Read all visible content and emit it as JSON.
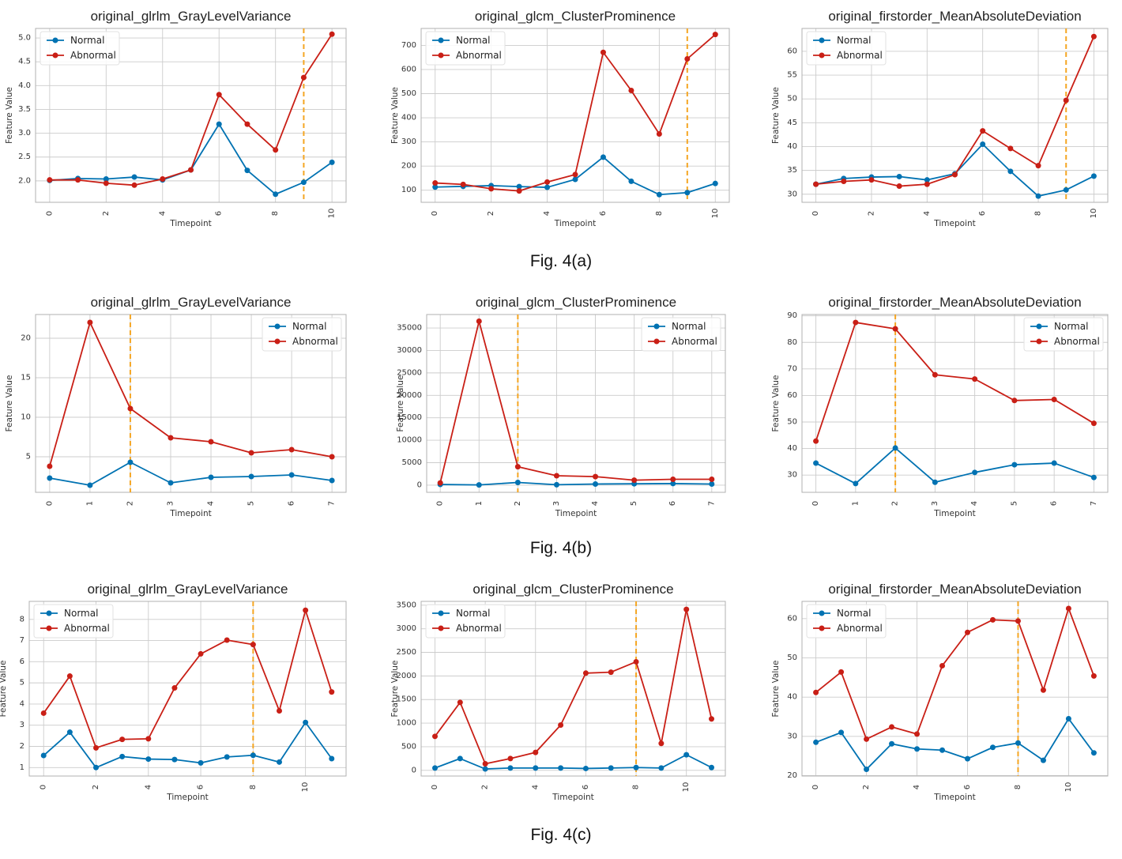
{
  "figures": [
    {
      "caption": "Fig. 4(a)"
    },
    {
      "caption": "Fig. 4(b)"
    },
    {
      "caption": "Fig. 4(c)"
    }
  ],
  "colors": {
    "normal": "#0072b2",
    "abnormal": "#c91f16",
    "threshold": "#f5a623",
    "grid": "#cccccc",
    "frame": "#b0b0b0"
  },
  "chart_data": [
    {
      "type": "line",
      "figure": "Fig. 4(a)",
      "title": "original_glrlm_GrayLevelVariance",
      "xlabel": "Timepoint",
      "ylabel": "Feature Value",
      "xlim": [
        -0.5,
        10.5
      ],
      "ylim": [
        1.55,
        5.2
      ],
      "xticks": [
        0,
        2,
        4,
        6,
        8,
        10
      ],
      "yticks": [
        2.0,
        2.5,
        3.0,
        3.5,
        4.0,
        4.5,
        5.0
      ],
      "ytick_labels": [
        "2.0",
        "2.5",
        "3.0",
        "3.5",
        "4.0",
        "4.5",
        "5.0"
      ],
      "threshold_x": 9,
      "legend": "top-left",
      "x": [
        0,
        1,
        2,
        3,
        4,
        5,
        6,
        7,
        8,
        9,
        10
      ],
      "series": [
        {
          "name": "Normal",
          "values": [
            2.01,
            2.05,
            2.04,
            2.08,
            2.02,
            2.23,
            3.19,
            2.22,
            1.72,
            1.97,
            2.39
          ]
        },
        {
          "name": "Abnormal",
          "values": [
            2.02,
            2.02,
            1.95,
            1.91,
            2.04,
            2.23,
            3.81,
            3.19,
            2.65,
            4.17,
            5.08
          ]
        }
      ]
    },
    {
      "type": "line",
      "figure": "Fig. 4(a)",
      "title": "original_glcm_ClusterProminence",
      "xlabel": "Timepoint",
      "ylabel": "Feature Value",
      "xlim": [
        -0.5,
        10.5
      ],
      "ylim": [
        50,
        770
      ],
      "xticks": [
        0,
        2,
        4,
        6,
        8,
        10
      ],
      "yticks": [
        100,
        200,
        300,
        400,
        500,
        600,
        700
      ],
      "ytick_labels": [
        "100",
        "200",
        "300",
        "400",
        "500",
        "600",
        "700"
      ],
      "threshold_x": 9,
      "legend": "top-left",
      "x": [
        0,
        1,
        2,
        3,
        4,
        5,
        6,
        7,
        8,
        9,
        10
      ],
      "series": [
        {
          "name": "Normal",
          "values": [
            113,
            116,
            119,
            115,
            112,
            145,
            237,
            137,
            82,
            90,
            128
          ]
        },
        {
          "name": "Abnormal",
          "values": [
            130,
            124,
            106,
            97,
            134,
            165,
            671,
            513,
            333,
            644,
            745
          ]
        }
      ]
    },
    {
      "type": "line",
      "figure": "Fig. 4(a)",
      "title": "original_firstorder_MeanAbsoluteDeviation",
      "xlabel": "Timepoint",
      "ylabel": "Feature Value",
      "xlim": [
        -0.5,
        10.5
      ],
      "ylim": [
        28.3,
        64.8
      ],
      "xticks": [
        0,
        2,
        4,
        6,
        8,
        10
      ],
      "yticks": [
        30,
        35,
        40,
        45,
        50,
        55,
        60
      ],
      "ytick_labels": [
        "30",
        "35",
        "40",
        "45",
        "50",
        "55",
        "60"
      ],
      "threshold_x": 9,
      "legend": "top-left",
      "x": [
        0,
        1,
        2,
        3,
        4,
        5,
        6,
        7,
        8,
        9,
        10
      ],
      "series": [
        {
          "name": "Normal",
          "values": [
            32.1,
            33.3,
            33.6,
            33.7,
            33.0,
            34.3,
            40.5,
            34.8,
            29.6,
            30.9,
            33.8
          ]
        },
        {
          "name": "Abnormal",
          "values": [
            32.1,
            32.7,
            33.0,
            31.7,
            32.1,
            34.1,
            43.3,
            39.6,
            36.0,
            49.7,
            63.1
          ]
        }
      ]
    },
    {
      "type": "line",
      "figure": "Fig. 4(b)",
      "title": "original_glrlm_GrayLevelVariance",
      "xlabel": "Timepoint",
      "ylabel": "Feature Value",
      "xlim": [
        -0.35,
        7.35
      ],
      "ylim": [
        0.5,
        23.0
      ],
      "xticks": [
        0,
        1,
        2,
        3,
        4,
        5,
        6,
        7
      ],
      "yticks": [
        5,
        10,
        15,
        20
      ],
      "ytick_labels": [
        "5",
        "10",
        "15",
        "20"
      ],
      "threshold_x": 2,
      "legend": "top-right",
      "x": [
        0,
        1,
        2,
        3,
        4,
        5,
        6,
        7
      ],
      "series": [
        {
          "name": "Normal",
          "values": [
            2.3,
            1.4,
            4.3,
            1.7,
            2.4,
            2.5,
            2.7,
            2.0
          ]
        },
        {
          "name": "Abnormal",
          "values": [
            3.8,
            22.0,
            11.1,
            7.4,
            6.9,
            5.5,
            5.9,
            5.0
          ]
        }
      ]
    },
    {
      "type": "line",
      "figure": "Fig. 4(b)",
      "title": "original_glcm_ClusterProminence",
      "xlabel": "Timepoint",
      "ylabel": "Feature Value",
      "xlim": [
        -0.35,
        7.35
      ],
      "ylim": [
        -1600,
        38000
      ],
      "xticks": [
        0,
        1,
        2,
        3,
        4,
        5,
        6,
        7
      ],
      "yticks": [
        0,
        5000,
        10000,
        15000,
        20000,
        25000,
        30000,
        35000
      ],
      "ytick_labels": [
        "0",
        "5000",
        "10000",
        "15000",
        "20000",
        "25000",
        "30000",
        "35000"
      ],
      "threshold_x": 2,
      "legend": "top-right",
      "x": [
        0,
        1,
        2,
        3,
        4,
        5,
        6,
        7
      ],
      "series": [
        {
          "name": "Normal",
          "values": [
            150,
            50,
            600,
            100,
            250,
            300,
            350,
            250
          ]
        },
        {
          "name": "Abnormal",
          "values": [
            500,
            36500,
            4100,
            2100,
            1900,
            1100,
            1300,
            1300
          ]
        }
      ]
    },
    {
      "type": "line",
      "figure": "Fig. 4(b)",
      "title": "original_firstorder_MeanAbsoluteDeviation",
      "xlabel": "Timepoint",
      "ylabel": "Feature Value",
      "xlim": [
        -0.35,
        7.35
      ],
      "ylim": [
        23.5,
        90.5
      ],
      "xticks": [
        0,
        1,
        2,
        3,
        4,
        5,
        6,
        7
      ],
      "yticks": [
        30,
        40,
        50,
        60,
        70,
        80,
        90
      ],
      "ytick_labels": [
        "30",
        "40",
        "50",
        "60",
        "70",
        "80",
        "90"
      ],
      "threshold_x": 2,
      "legend": "top-right",
      "x": [
        0,
        1,
        2,
        3,
        4,
        5,
        6,
        7
      ],
      "series": [
        {
          "name": "Normal",
          "values": [
            34.5,
            26.8,
            40.2,
            27.3,
            31.0,
            33.9,
            34.5,
            29.1
          ]
        },
        {
          "name": "Abnormal",
          "values": [
            42.8,
            87.5,
            85.1,
            67.8,
            66.2,
            58.1,
            58.5,
            49.5
          ]
        }
      ]
    },
    {
      "type": "line",
      "figure": "Fig. 4(c)",
      "title": "original_glrlm_GrayLevelVariance",
      "xlabel": "Timepoint",
      "ylabel": "Feature Value",
      "xlim": [
        -0.55,
        11.55
      ],
      "ylim": [
        0.6,
        8.85
      ],
      "xticks": [
        0,
        2,
        4,
        6,
        8,
        10
      ],
      "yticks": [
        1,
        2,
        3,
        4,
        5,
        6,
        7,
        8
      ],
      "ytick_labels": [
        "1",
        "2",
        "3",
        "4",
        "5",
        "6",
        "7",
        "8"
      ],
      "threshold_x": 8,
      "legend": "top-left",
      "x": [
        0,
        1,
        2,
        3,
        4,
        5,
        6,
        7,
        8,
        9,
        10,
        11
      ],
      "series": [
        {
          "name": "Normal",
          "values": [
            1.57,
            2.67,
            1.0,
            1.52,
            1.4,
            1.38,
            1.22,
            1.5,
            1.58,
            1.26,
            3.13,
            1.42
          ]
        },
        {
          "name": "Abnormal",
          "values": [
            3.57,
            5.32,
            1.93,
            2.33,
            2.36,
            4.76,
            6.37,
            7.02,
            6.81,
            3.68,
            8.43,
            4.57
          ]
        }
      ]
    },
    {
      "type": "line",
      "figure": "Fig. 4(c)",
      "title": "original_glcm_ClusterProminence",
      "xlabel": "Timepoint",
      "ylabel": "Feature Value",
      "xlim": [
        -0.55,
        11.55
      ],
      "ylim": [
        -120,
        3580
      ],
      "xticks": [
        0,
        2,
        4,
        6,
        8,
        10
      ],
      "yticks": [
        0,
        500,
        1000,
        1500,
        2000,
        2500,
        3000,
        3500
      ],
      "ytick_labels": [
        "0",
        "500",
        "1000",
        "1500",
        "2000",
        "2500",
        "3000",
        "3500"
      ],
      "threshold_x": 8,
      "legend": "top-left",
      "x": [
        0,
        1,
        2,
        3,
        4,
        5,
        6,
        7,
        8,
        9,
        10,
        11
      ],
      "series": [
        {
          "name": "Normal",
          "values": [
            50,
            250,
            30,
            50,
            50,
            50,
            40,
            50,
            60,
            50,
            330,
            60
          ]
        },
        {
          "name": "Abnormal",
          "values": [
            720,
            1440,
            140,
            250,
            380,
            960,
            2060,
            2080,
            2300,
            570,
            3410,
            1090
          ]
        }
      ]
    },
    {
      "type": "line",
      "figure": "Fig. 4(c)",
      "title": "original_firstorder_MeanAbsoluteDeviation",
      "xlabel": "Timepoint",
      "ylabel": "Feature Value",
      "xlim": [
        -0.55,
        11.55
      ],
      "ylim": [
        19.9,
        64.4
      ],
      "xticks": [
        0,
        2,
        4,
        6,
        8,
        10
      ],
      "yticks": [
        20,
        30,
        40,
        50,
        60
      ],
      "ytick_labels": [
        "20",
        "30",
        "40",
        "50",
        "60"
      ],
      "threshold_x": 8,
      "legend": "top-left",
      "x": [
        0,
        1,
        2,
        3,
        4,
        5,
        6,
        7,
        8,
        9,
        10,
        11
      ],
      "series": [
        {
          "name": "Normal",
          "values": [
            28.5,
            31.0,
            21.6,
            28.1,
            26.8,
            26.5,
            24.3,
            27.2,
            28.3,
            23.9,
            34.5,
            25.8
          ]
        },
        {
          "name": "Abnormal",
          "values": [
            41.2,
            46.4,
            29.3,
            32.4,
            30.6,
            48.0,
            56.5,
            59.7,
            59.4,
            41.8,
            62.6,
            45.4
          ]
        }
      ]
    }
  ]
}
